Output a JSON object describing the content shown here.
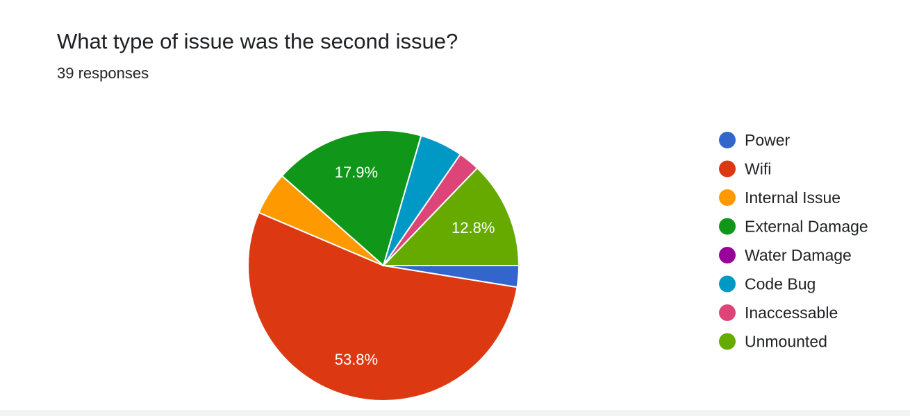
{
  "header": {
    "title": "What type of issue was the second issue?",
    "responses": "39 responses"
  },
  "chart_data": {
    "type": "pie",
    "title": "What type of issue was the second issue?",
    "total_responses": 39,
    "legend_position": "right",
    "slices": [
      {
        "name": "Power",
        "value": 1,
        "color": "#3366cc",
        "label": ""
      },
      {
        "name": "Wifi",
        "value": 21,
        "color": "#dc3912",
        "label": "53.8%"
      },
      {
        "name": "Internal Issue",
        "value": 2,
        "color": "#ff9900",
        "label": ""
      },
      {
        "name": "External Damage",
        "value": 7,
        "color": "#109618",
        "label": "17.9%"
      },
      {
        "name": "Water Damage",
        "value": 0,
        "color": "#990099",
        "label": ""
      },
      {
        "name": "Code Bug",
        "value": 2,
        "color": "#0099c6",
        "label": ""
      },
      {
        "name": "Inaccessable",
        "value": 1,
        "color": "#dd4477",
        "label": ""
      },
      {
        "name": "Unmounted",
        "value": 5,
        "color": "#66aa00",
        "label": "12.8%"
      }
    ]
  }
}
